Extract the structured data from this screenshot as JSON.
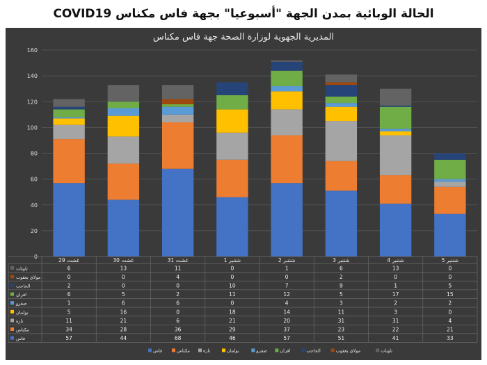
{
  "page_title": "الحالة الوبائية بمدن الجهة  \"أسبوعيا\" بجهة فاس مكناس COVID19",
  "colors": {
    "panel_bg": "#3a3a3a",
    "series": [
      "#4472c4",
      "#ed7d31",
      "#a5a5a5",
      "#ffc000",
      "#5b9bd5",
      "#70ad47",
      "#264478",
      "#9e480e",
      "#636363"
    ]
  },
  "chart_data": {
    "type": "bar",
    "stacked": true,
    "title": "المديرية الجهوية لوزارة الصحة جهة فاس مكناس",
    "categories": [
      "غشت 29",
      "غشت 30",
      "غشت 31",
      "شتنبر 1",
      "شتنبر 2",
      "شتنبر 3",
      "شتنبر 4",
      "شتنبر 5"
    ],
    "ylim": [
      0,
      160
    ],
    "yticks": [
      0,
      20,
      40,
      60,
      80,
      100,
      120,
      140,
      160
    ],
    "grid": true,
    "legend_position": "bottom",
    "data_table": true,
    "series": [
      {
        "name": "فاس",
        "values": [
          57,
          44,
          68,
          46,
          57,
          51,
          41,
          33
        ]
      },
      {
        "name": "مكناس",
        "values": [
          34,
          28,
          36,
          29,
          37,
          23,
          22,
          21
        ]
      },
      {
        "name": "تازة",
        "values": [
          11,
          21,
          6,
          21,
          20,
          31,
          31,
          4
        ]
      },
      {
        "name": "بولمان",
        "values": [
          5,
          16,
          0,
          18,
          14,
          11,
          3,
          0
        ]
      },
      {
        "name": "صفرو",
        "values": [
          1,
          6,
          6,
          0,
          4,
          3,
          2,
          2
        ]
      },
      {
        "name": "افران",
        "values": [
          6,
          5,
          2,
          11,
          12,
          5,
          17,
          15
        ]
      },
      {
        "name": "الحاجب",
        "values": [
          2,
          0,
          0,
          10,
          7,
          9,
          1,
          5
        ]
      },
      {
        "name": "مولاي يعقوب",
        "values": [
          0,
          0,
          4,
          0,
          0,
          2,
          0,
          0
        ]
      },
      {
        "name": "تاونات",
        "values": [
          6,
          13,
          11,
          0,
          1,
          6,
          13,
          0
        ]
      }
    ]
  }
}
